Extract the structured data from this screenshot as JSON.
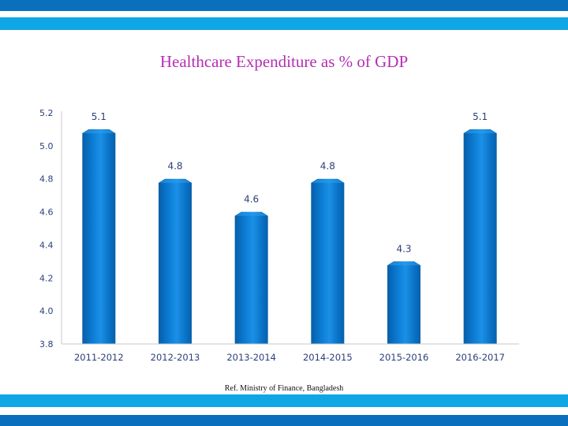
{
  "chart_data": {
    "type": "bar",
    "title": "Healthcare Expenditure as % of GDP",
    "categories": [
      "2011-2012",
      "2012-2013",
      "2013-2014",
      "2014-2015",
      "2015-2016",
      "2016-2017"
    ],
    "values": [
      5.1,
      4.8,
      4.6,
      4.8,
      4.3,
      5.1
    ],
    "data_labels": [
      "5.1",
      "4.8",
      "4.6",
      "4.8",
      "4.3",
      "5.1"
    ],
    "ylim": [
      3.8,
      5.2
    ],
    "yticks": [
      "3.8",
      "4.0",
      "4.2",
      "4.4",
      "4.6",
      "4.8",
      "5.0",
      "5.2"
    ],
    "xlabel": "",
    "ylabel": "",
    "grid": false,
    "bar_color": "#0b78cc",
    "label_color": "#2b3f7a"
  },
  "source_note": "Ref. Ministry of Finance, Bangladesh",
  "colors": {
    "band_dark": "#0a6fbd",
    "band_light": "#0fa6e6",
    "title": "#b42fb4"
  }
}
